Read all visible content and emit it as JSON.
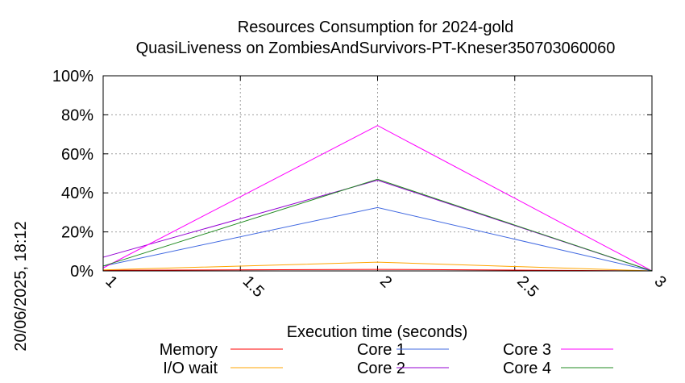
{
  "timestamp": "20/06/2025, 18:12",
  "chart_data": {
    "type": "line",
    "title": "Resources Consumption for 2024-gold",
    "subtitle": "QuasiLiveness on ZombiesAndSurvivors-PT-Kneser350703060060",
    "xlabel": "Execution time (seconds)",
    "ylabel": "",
    "xlim": [
      1,
      3
    ],
    "ylim": [
      0,
      100
    ],
    "x_ticks": [
      1,
      1.5,
      2,
      2.5,
      3
    ],
    "x_tick_labels": [
      "1",
      "1.5",
      "2",
      "2.5",
      "3"
    ],
    "y_ticks": [
      0,
      20,
      40,
      60,
      80,
      100
    ],
    "y_tick_labels": [
      "0%",
      "20%",
      "40%",
      "60%",
      "80%",
      "100%"
    ],
    "grid": true,
    "legend_placement": "bottom",
    "x": [
      1,
      2,
      3
    ],
    "series": [
      {
        "name": "Memory",
        "color": "#ff0000",
        "values": [
          0.3,
          0.8,
          0
        ]
      },
      {
        "name": "I/O wait",
        "color": "#ffa500",
        "values": [
          0.5,
          4.5,
          0
        ]
      },
      {
        "name": "Core 1",
        "color": "#4169e1",
        "values": [
          2.5,
          32.5,
          0
        ]
      },
      {
        "name": "Core 2",
        "color": "#9400d3",
        "values": [
          7,
          46.5,
          0
        ]
      },
      {
        "name": "Core 3",
        "color": "#ff00ff",
        "values": [
          1.5,
          74.5,
          0
        ]
      },
      {
        "name": "Core 4",
        "color": "#228b22",
        "values": [
          2.5,
          47,
          0
        ]
      }
    ]
  }
}
